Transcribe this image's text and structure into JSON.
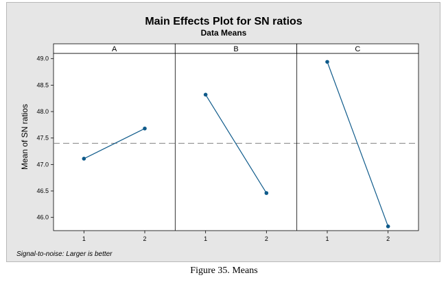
{
  "caption": "Figure 35. Means",
  "chart_data": {
    "type": "line",
    "title": "Main Effects Plot for SN ratios",
    "subtitle": "Data Means",
    "ylabel": "Mean of SN ratios",
    "footnote": "Signal-to-noise: Larger is better",
    "ylim": [
      45.75,
      49.1
    ],
    "yticks": [
      "49.0",
      "48.5",
      "48.0",
      "47.5",
      "47.0",
      "46.5",
      "46.0"
    ],
    "overall_mean": 47.4,
    "categories": [
      "1",
      "2"
    ],
    "panels": [
      {
        "name": "A",
        "values": [
          47.11,
          47.68
        ]
      },
      {
        "name": "B",
        "values": [
          48.32,
          46.46
        ]
      },
      {
        "name": "C",
        "values": [
          48.94,
          45.83
        ]
      }
    ],
    "colors": {
      "line": "#0e5a8a",
      "marker": "#0e5a8a",
      "reference": "#808080",
      "background": "#e6e6e6",
      "plot": "#ffffff"
    }
  }
}
